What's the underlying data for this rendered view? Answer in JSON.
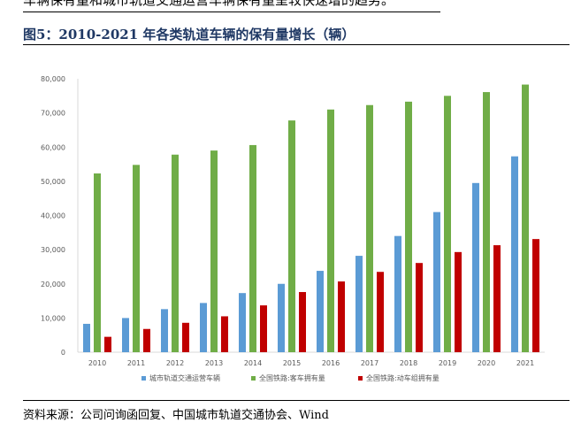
{
  "header": {
    "intro_text": "车辆保有量和城市轨道交通运营车辆保有量呈较快速增的趋势。",
    "figure_title": "图5：2010-2021 年各类轨道车辆的保有量增长（辆）"
  },
  "footer": {
    "source": "资料来源：公司问询函回复、中国城市轨道交通协会、Wind"
  },
  "chart_data": {
    "type": "bar",
    "categories": [
      "2010",
      "2011",
      "2012",
      "2013",
      "2014",
      "2015",
      "2016",
      "2017",
      "2018",
      "2019",
      "2020",
      "2021"
    ],
    "series": [
      {
        "name": "城市轨道交通运营车辆",
        "color": "#5b9bd5",
        "values": [
          8300,
          10000,
          12600,
          14400,
          17300,
          20000,
          23800,
          28200,
          34000,
          41000,
          49500,
          57300
        ]
      },
      {
        "name": "全国铁路:客车拥有量",
        "color": "#70ad47",
        "values": [
          52300,
          54800,
          57800,
          59000,
          60600,
          67800,
          71000,
          72300,
          73300,
          75000,
          76100,
          78300
        ]
      },
      {
        "name": "全国铁路:动车组拥有量",
        "color": "#c00000",
        "values": [
          4500,
          6800,
          8600,
          10500,
          13700,
          17600,
          20700,
          23500,
          26100,
          29300,
          31300,
          33100
        ]
      }
    ],
    "y_ticks": [
      "0",
      "10,000",
      "20,000",
      "30,000",
      "40,000",
      "50,000",
      "60,000",
      "70,000",
      "80,000"
    ],
    "ylim": [
      0,
      80000
    ],
    "legend_position": "bottom",
    "grid": false
  }
}
